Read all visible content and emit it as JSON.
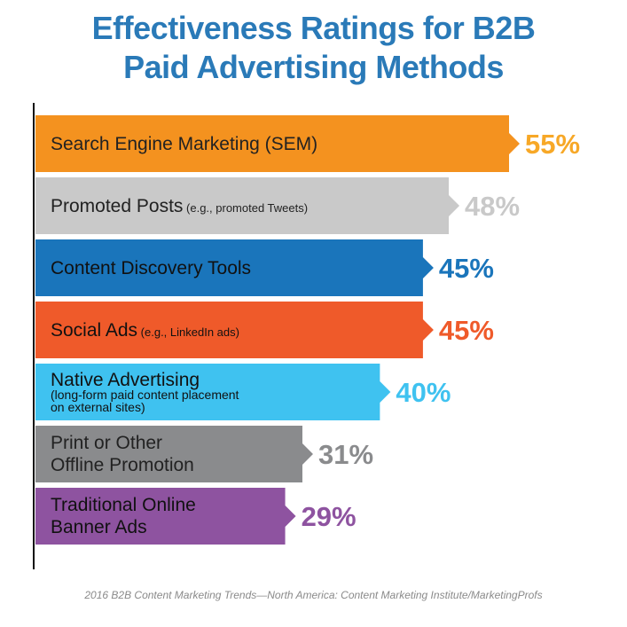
{
  "title_line1": "Effectiveness Ratings for B2B",
  "title_line2": "Paid Advertising Methods",
  "source": "2016 B2B Content Marketing Trends—North America: Content Marketing Institute/MarketingProfs",
  "chart_data": {
    "type": "bar",
    "orientation": "horizontal",
    "title": "Effectiveness Ratings for B2B Paid Advertising Methods",
    "categories": [
      "Search Engine Marketing (SEM)",
      "Promoted Posts (e.g., promoted Tweets)",
      "Content Discovery Tools",
      "Social Ads (e.g., LinkedIn ads)",
      "Native Advertising (long-form paid content placement on external sites)",
      "Print or Other Offline Promotion",
      "Traditional Online Banner Ads"
    ],
    "values": [
      55,
      48,
      45,
      45,
      40,
      31,
      29
    ],
    "value_labels": [
      "55%",
      "48%",
      "45%",
      "45%",
      "40%",
      "31%",
      "29%"
    ],
    "category_lines": [
      [
        {
          "text": "Search Engine Marketing (SEM)",
          "size": "main"
        }
      ],
      [
        {
          "text": "Promoted Posts",
          "size": "main"
        },
        {
          "text": " (e.g., promoted Tweets)",
          "size": "small"
        }
      ],
      [
        {
          "text": "Content Discovery Tools",
          "size": "main"
        }
      ],
      [
        {
          "text": "Social Ads",
          "size": "main"
        },
        {
          "text": " (e.g., LinkedIn ads)",
          "size": "small"
        }
      ],
      [
        {
          "text": "Native Advertising",
          "size": "main"
        }
      ],
      [
        {
          "text": "Print or Other",
          "size": "main"
        }
      ],
      [
        {
          "text": "Traditional Online",
          "size": "main"
        }
      ]
    ],
    "category_sublines": [
      [],
      [],
      [],
      [],
      [
        {
          "text": "(long-form paid content placement",
          "size": "sub"
        },
        {
          "text": "on external sites)",
          "size": "sub"
        }
      ],
      [
        {
          "text": "Offline Promotion",
          "size": "main"
        }
      ],
      [
        {
          "text": "Banner Ads",
          "size": "main"
        }
      ]
    ],
    "colors": [
      "#f4921f",
      "#c9c9c9",
      "#1a75bb",
      "#ef5a2a",
      "#3fc2f0",
      "#8a8b8d",
      "#8e53a0"
    ],
    "label_colors": [
      "#f7a827",
      "#c9c9c9",
      "#1a75bb",
      "#ef5a2a",
      "#3fc2f0",
      "#8a8b8d",
      "#8e53a0"
    ],
    "text_colors": [
      "#222222",
      "#222222",
      "#111111",
      "#111111",
      "#111111",
      "#222222",
      "#111111"
    ],
    "xlim": [
      0,
      55
    ],
    "grid": false,
    "legend": "none"
  }
}
